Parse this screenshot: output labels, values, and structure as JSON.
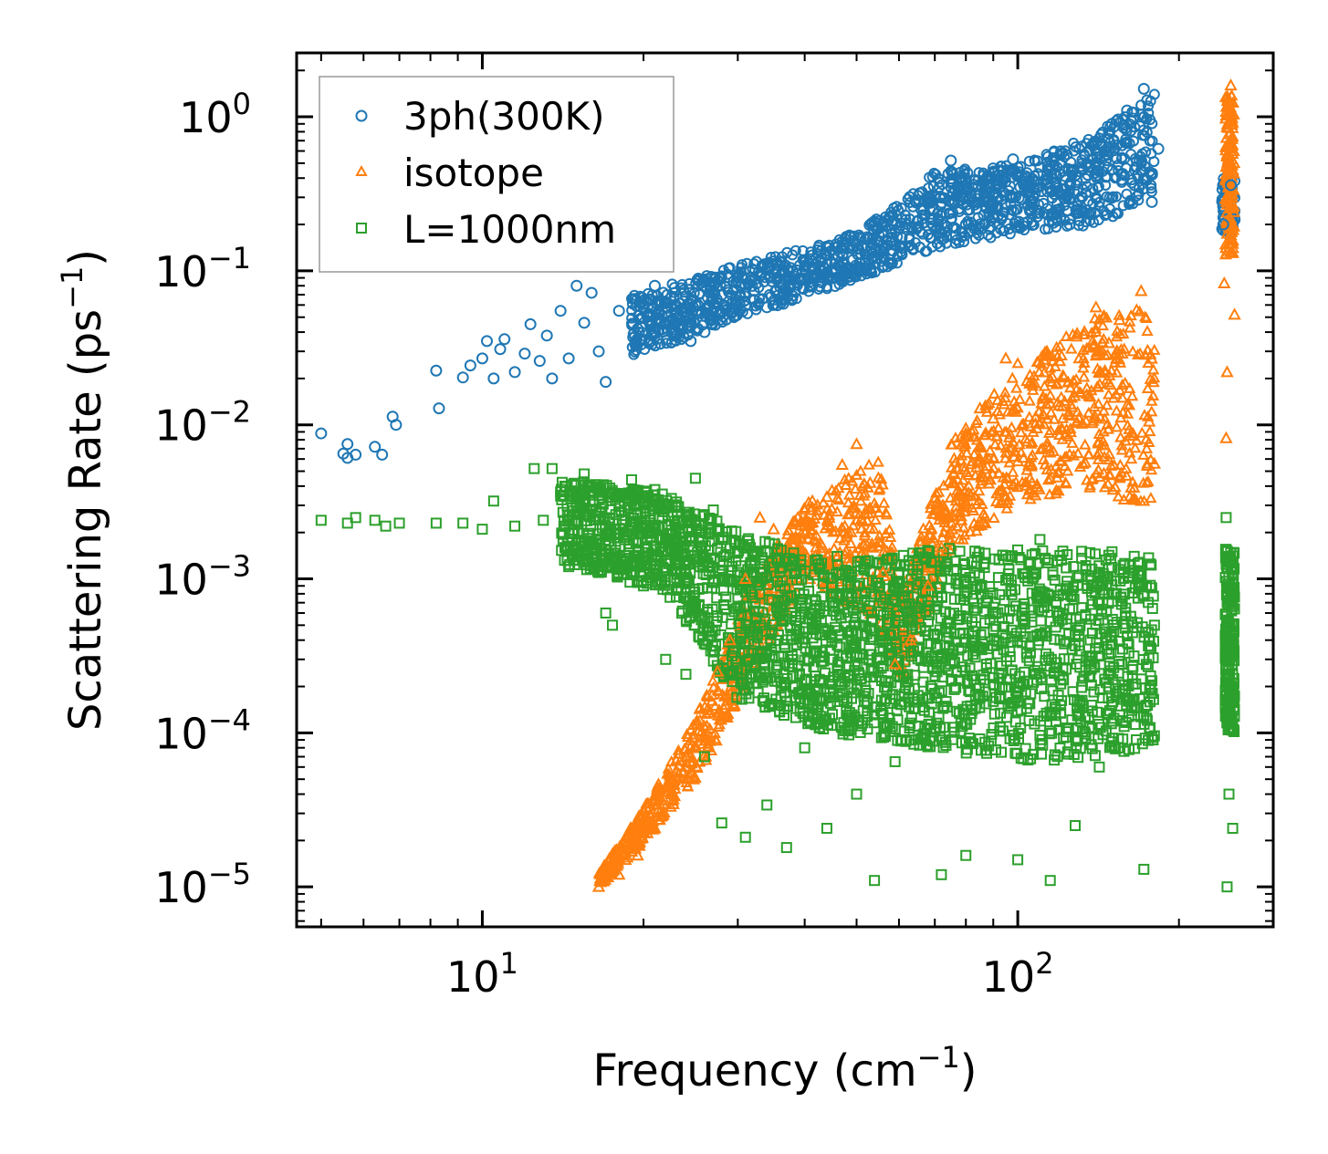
{
  "chart_data": {
    "type": "scatter",
    "xscale": "log",
    "yscale": "log",
    "xlim": [
      4.5,
      300
    ],
    "ylim": [
      5.5e-06,
      2.6
    ],
    "xlabel": "Frequency (cm",
    "xlabel_sup": "−1",
    "xlabel_tail": ")",
    "ylabel": "Scattering Rate (ps",
    "ylabel_sup": "−1",
    "ylabel_tail": ")",
    "xticks": [
      {
        "value": 10,
        "base": "10",
        "exp": "1"
      },
      {
        "value": 100,
        "base": "10",
        "exp": "2"
      }
    ],
    "yticks": [
      {
        "value": 1,
        "base": "10",
        "exp": "0"
      },
      {
        "value": 0.1,
        "base": "10",
        "exp": "−1"
      },
      {
        "value": 0.01,
        "base": "10",
        "exp": "−2"
      },
      {
        "value": 0.001,
        "base": "10",
        "exp": "−3"
      },
      {
        "value": 0.0001,
        "base": "10",
        "exp": "−4"
      },
      {
        "value": 1e-05,
        "base": "10",
        "exp": "−5"
      }
    ],
    "legend_position": "upper-left",
    "series": [
      {
        "name": "3ph(300K)",
        "marker": "circle",
        "color": "#1f77b4",
        "points": [
          [
            5.0,
            0.0088
          ],
          [
            5.5,
            0.0065
          ],
          [
            5.6,
            0.0061
          ],
          [
            5.6,
            0.0075
          ],
          [
            5.8,
            0.0064
          ],
          [
            6.3,
            0.0072
          ],
          [
            6.5,
            0.0064
          ],
          [
            6.8,
            0.0113
          ],
          [
            6.9,
            0.01
          ],
          [
            8.2,
            0.0225
          ],
          [
            8.3,
            0.0128
          ],
          [
            9.2,
            0.0203
          ],
          [
            9.5,
            0.0243
          ],
          [
            10.0,
            0.027
          ],
          [
            10.2,
            0.035
          ],
          [
            10.5,
            0.02
          ],
          [
            10.8,
            0.031
          ],
          [
            11.0,
            0.036
          ],
          [
            11.5,
            0.022
          ],
          [
            12.0,
            0.029
          ],
          [
            12.3,
            0.045
          ],
          [
            12.8,
            0.026
          ],
          [
            13.2,
            0.038
          ],
          [
            13.5,
            0.02
          ],
          [
            14.0,
            0.055
          ],
          [
            14.5,
            0.027
          ],
          [
            15.0,
            0.08
          ],
          [
            15.5,
            0.046
          ],
          [
            16.0,
            0.072
          ],
          [
            16.5,
            0.03
          ],
          [
            17.0,
            0.019
          ],
          [
            18.0,
            0.055
          ],
          [
            19.5,
            0.042
          ],
          [
            21.0,
            0.08
          ],
          [
            23.0,
            0.046
          ],
          [
            24.5,
            0.035
          ],
          [
            26.0,
            0.04
          ],
          [
            28.0,
            0.07
          ],
          [
            31.0,
            0.09
          ],
          [
            34.0,
            0.058
          ],
          [
            38.0,
            0.1
          ],
          [
            43.0,
            0.12
          ],
          [
            48.0,
            0.14
          ],
          [
            55.0,
            0.17
          ],
          [
            60.0,
            0.19
          ],
          [
            70.0,
            0.3
          ],
          [
            75.0,
            0.52
          ],
          [
            80.0,
            0.2
          ],
          [
            92.0,
            0.45
          ],
          [
            98.0,
            0.53
          ],
          [
            105.0,
            0.32
          ],
          [
            115.0,
            0.45
          ],
          [
            125.0,
            0.2
          ],
          [
            140.0,
            0.6
          ],
          [
            150.0,
            0.9
          ],
          [
            160.0,
            1.1
          ],
          [
            172.0,
            1.52
          ],
          [
            178.0,
            0.28
          ],
          [
            183.0,
            0.62
          ],
          [
            242.0,
            0.2
          ],
          [
            250.0,
            0.36
          ]
        ]
      },
      {
        "name": "isotope",
        "marker": "triangle",
        "color": "#ff7f0e",
        "points": [
          [
            16.5,
            1e-05
          ],
          [
            18.0,
            1.2e-05
          ],
          [
            19.5,
            1.6e-05
          ],
          [
            21.0,
            2.4e-05
          ],
          [
            22.5,
            4e-05
          ],
          [
            24.0,
            7e-05
          ],
          [
            25.5,
            0.00012
          ],
          [
            27.5,
            0.00025
          ],
          [
            29.0,
            0.0004
          ],
          [
            31.0,
            0.001
          ],
          [
            33.0,
            0.0025
          ],
          [
            35.0,
            0.0021
          ],
          [
            38.0,
            0.0018
          ],
          [
            41.0,
            0.0028
          ],
          [
            44.0,
            0.0034
          ],
          [
            47.0,
            0.0055
          ],
          [
            50.0,
            0.0075
          ],
          [
            53.0,
            0.0042
          ],
          [
            56.0,
            0.0011
          ],
          [
            59.0,
            0.00028
          ],
          [
            63.0,
            0.0004
          ],
          [
            68.0,
            0.0009
          ],
          [
            72.0,
            0.0016
          ],
          [
            76.0,
            0.0048
          ],
          [
            80.0,
            0.0088
          ],
          [
            85.0,
            0.0128
          ],
          [
            90.0,
            0.011
          ],
          [
            95.0,
            0.027
          ],
          [
            100.0,
            0.0058
          ],
          [
            108.0,
            0.0112
          ],
          [
            115.0,
            0.0138
          ],
          [
            122.0,
            0.0203
          ],
          [
            130.0,
            0.011
          ],
          [
            140.0,
            0.058
          ],
          [
            148.0,
            0.034
          ],
          [
            155.0,
            0.048
          ],
          [
            162.0,
            0.0085
          ],
          [
            170.0,
            0.074
          ],
          [
            176.0,
            0.0105
          ],
          [
            180.0,
            0.0056
          ],
          [
            243.0,
            0.083
          ],
          [
            245.0,
            0.0082
          ],
          [
            246.0,
            0.022
          ],
          [
            248.0,
            0.5
          ],
          [
            250.0,
            1.6
          ],
          [
            252.0,
            0.15
          ],
          [
            254.0,
            0.052
          ]
        ]
      },
      {
        "name": "L=1000nm",
        "marker": "square",
        "color": "#2ca02c",
        "points": [
          [
            5.0,
            0.0024
          ],
          [
            5.6,
            0.0023
          ],
          [
            5.8,
            0.0025
          ],
          [
            6.3,
            0.0024
          ],
          [
            6.6,
            0.0022
          ],
          [
            7.0,
            0.0023
          ],
          [
            8.2,
            0.0023
          ],
          [
            9.2,
            0.0023
          ],
          [
            10.0,
            0.0021
          ],
          [
            10.5,
            0.0032
          ],
          [
            11.5,
            0.0022
          ],
          [
            12.5,
            0.0052
          ],
          [
            13.0,
            0.0024
          ],
          [
            13.5,
            0.0052
          ],
          [
            14.5,
            0.0012
          ],
          [
            15.5,
            0.0048
          ],
          [
            16.5,
            0.0035
          ],
          [
            17.0,
            0.0006
          ],
          [
            17.5,
            0.0005
          ],
          [
            18.0,
            0.0012
          ],
          [
            19.0,
            0.0044
          ],
          [
            20.0,
            0.0009
          ],
          [
            21.0,
            0.0038
          ],
          [
            22.0,
            0.0003
          ],
          [
            23.0,
            0.0018
          ],
          [
            24.0,
            0.00024
          ],
          [
            25.0,
            0.0045
          ],
          [
            26.0,
            7e-05
          ],
          [
            27.0,
            0.0028
          ],
          [
            28.0,
            2.6e-05
          ],
          [
            30.0,
            0.0011
          ],
          [
            31.0,
            2.1e-05
          ],
          [
            33.0,
            0.00034
          ],
          [
            34.0,
            3.4e-05
          ],
          [
            36.0,
            0.0009
          ],
          [
            37.0,
            1.8e-05
          ],
          [
            39.0,
            0.00018
          ],
          [
            40.0,
            8e-05
          ],
          [
            42.0,
            0.00044
          ],
          [
            44.0,
            2.4e-05
          ],
          [
            46.0,
            0.0014
          ],
          [
            48.0,
            0.00016
          ],
          [
            50.0,
            4e-05
          ],
          [
            52.0,
            0.0008
          ],
          [
            54.0,
            1.1e-05
          ],
          [
            57.0,
            0.0006
          ],
          [
            59.0,
            6.5e-05
          ],
          [
            62.0,
            9e-05
          ],
          [
            65.0,
            0.0012
          ],
          [
            68.0,
            0.00038
          ],
          [
            72.0,
            1.2e-05
          ],
          [
            75.0,
            0.00099
          ],
          [
            78.0,
            0.00022
          ],
          [
            80.0,
            1.6e-05
          ],
          [
            85.0,
            0.0009
          ],
          [
            90.0,
            0.00016
          ],
          [
            95.0,
            0.00098
          ],
          [
            100.0,
            1.5e-05
          ],
          [
            105.0,
            0.00012
          ],
          [
            110.0,
            0.0018
          ],
          [
            115.0,
            1.1e-05
          ],
          [
            120.0,
            0.0004
          ],
          [
            128.0,
            2.5e-05
          ],
          [
            135.0,
            0.0009
          ],
          [
            142.0,
            6e-05
          ],
          [
            150.0,
            0.0015
          ],
          [
            158.0,
            0.00011
          ],
          [
            165.0,
            0.0014
          ],
          [
            172.0,
            1.3e-05
          ],
          [
            180.0,
            0.0005
          ],
          [
            245.0,
            0.0025
          ],
          [
            246.0,
            1e-05
          ],
          [
            248.0,
            4e-05
          ],
          [
            250.0,
            0.0008
          ],
          [
            252.0,
            2.4e-05
          ]
        ]
      }
    ]
  }
}
